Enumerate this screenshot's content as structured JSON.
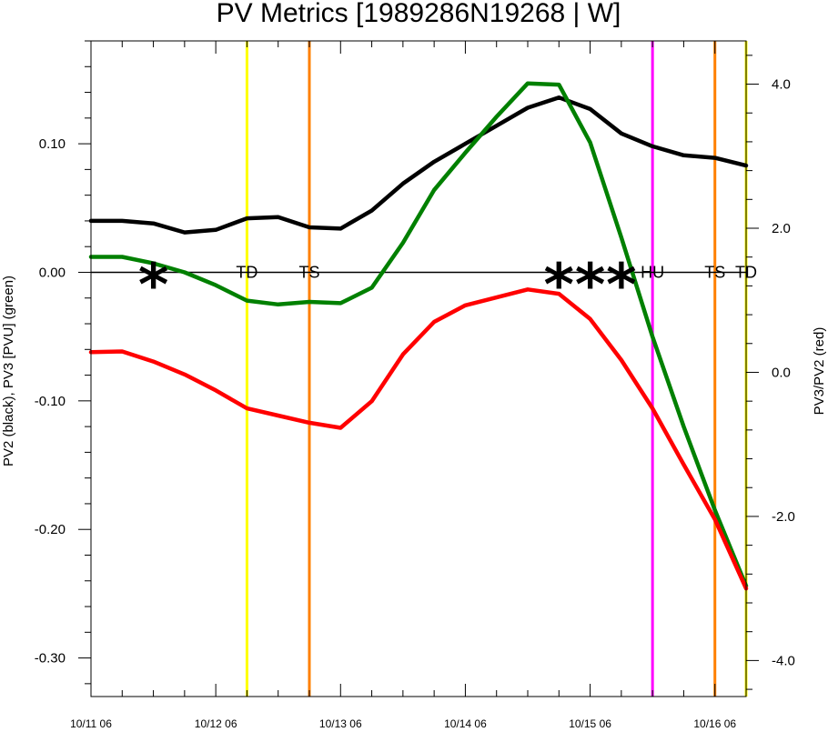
{
  "chart_data": {
    "type": "line",
    "title": "PV Metrics [1989286N19268 | W]",
    "ylabel_left": "PV2 (black), PV3 [PVU] (green)",
    "ylabel_right": "PV3/PV2 (red)",
    "xlim": [
      0,
      126
    ],
    "ylim_left": [
      -0.33,
      0.18
    ],
    "ylim_right": [
      -4.5,
      4.6
    ],
    "x_ticks": [
      {
        "x": 0,
        "label": "10/11 06"
      },
      {
        "x": 24,
        "label": "10/12 06"
      },
      {
        "x": 48,
        "label": "10/13 06"
      },
      {
        "x": 72,
        "label": "10/14 06"
      },
      {
        "x": 96,
        "label": "10/15 06"
      },
      {
        "x": 120,
        "label": "10/16 06"
      }
    ],
    "x_minor_step": 6,
    "y_left_ticks": [
      {
        "v": 0.1,
        "label": "0.10"
      },
      {
        "v": 0.0,
        "label": "0.00"
      },
      {
        "v": -0.1,
        "label": "-0.10"
      },
      {
        "v": -0.2,
        "label": "-0.20"
      },
      {
        "v": -0.3,
        "label": "-0.30"
      }
    ],
    "y_left_minor_step": 0.02,
    "y_right_ticks": [
      {
        "v": 4.0,
        "label": "4.0"
      },
      {
        "v": 2.0,
        "label": "2.0"
      },
      {
        "v": 0.0,
        "label": "0.0"
      },
      {
        "v": -2.0,
        "label": "-2.0"
      },
      {
        "v": -4.0,
        "label": "-4.0"
      }
    ],
    "y_right_minor_step": 0.4,
    "zero_line": 0.0,
    "series": [
      {
        "axis": "left",
        "color": "#000000",
        "x": [
          0,
          6,
          12,
          18,
          24,
          30,
          36,
          42,
          48,
          54,
          60,
          66,
          72,
          78,
          84,
          90,
          96,
          102,
          108,
          114,
          120,
          126
        ],
        "values": [
          0.04,
          0.04,
          0.038,
          0.031,
          0.033,
          0.042,
          0.043,
          0.035,
          0.034,
          0.048,
          0.069,
          0.086,
          0.1,
          0.114,
          0.128,
          0.136,
          0.127,
          0.108,
          0.098,
          0.091,
          0.089,
          0.083
        ]
      },
      {
        "axis": "left",
        "color": "#008000",
        "x": [
          0,
          6,
          12,
          18,
          24,
          30,
          36,
          42,
          48,
          54,
          60,
          66,
          72,
          78,
          84,
          90,
          96,
          102,
          108,
          114,
          120,
          126
        ],
        "values": [
          0.012,
          0.012,
          0.007,
          0.0,
          -0.01,
          -0.022,
          -0.025,
          -0.023,
          -0.024,
          -0.012,
          0.023,
          0.064,
          0.093,
          0.121,
          0.147,
          0.146,
          0.101,
          0.027,
          -0.05,
          -0.12,
          -0.185,
          -0.244
        ]
      },
      {
        "axis": "right",
        "color": "#ff0000",
        "x": [
          0,
          6,
          12,
          18,
          24,
          30,
          36,
          42,
          48,
          54,
          60,
          66,
          72,
          78,
          84,
          90,
          96,
          102,
          108,
          114,
          120,
          126
        ],
        "values": [
          0.28,
          0.29,
          0.15,
          -0.03,
          -0.25,
          -0.5,
          -0.6,
          -0.7,
          -0.77,
          -0.4,
          0.25,
          0.7,
          0.93,
          1.04,
          1.15,
          1.09,
          0.74,
          0.17,
          -0.5,
          -1.28,
          -2.04,
          -3.0
        ]
      }
    ],
    "event_lines": [
      {
        "x": 30,
        "color": "#ffff00",
        "label": "TD"
      },
      {
        "x": 42,
        "color": "#ff8000",
        "label": "TS"
      },
      {
        "x": 108,
        "color": "#ff00ff",
        "label": "HU"
      },
      {
        "x": 120,
        "color": "#ff8000",
        "label": "TS"
      },
      {
        "x": 126,
        "color": "#ffff00",
        "label": "TD"
      }
    ],
    "markers": [
      {
        "x": 12,
        "symbol": "*"
      },
      {
        "x": 90,
        "symbol": "*"
      },
      {
        "x": 96,
        "symbol": "*"
      },
      {
        "x": 102,
        "symbol": "*"
      }
    ]
  }
}
